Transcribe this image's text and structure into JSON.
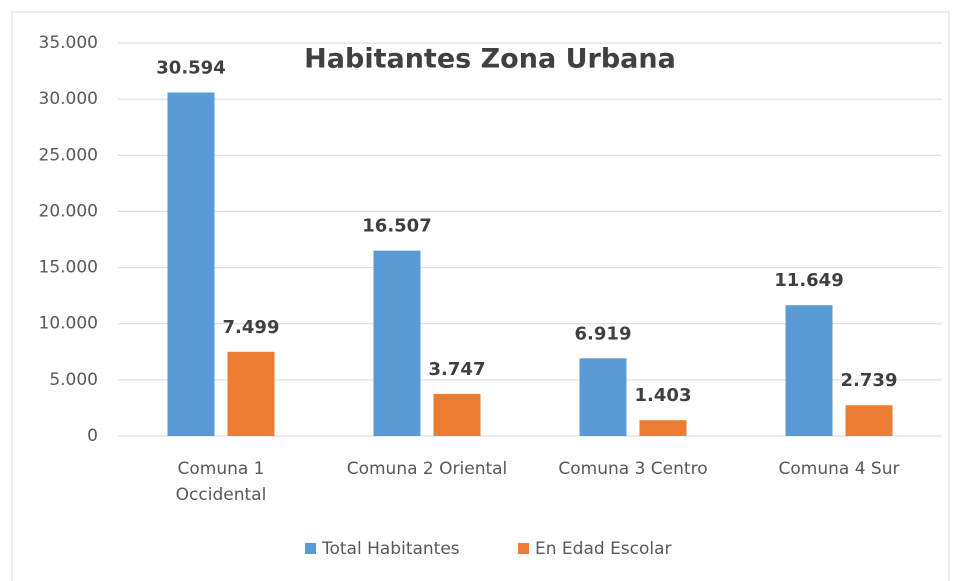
{
  "chart_data": {
    "type": "bar",
    "title": "Habitantes Zona Urbana",
    "categories": [
      "Comuna 1 Occidental",
      "Comuna 2 Oriental",
      "Comuna 3 Centro",
      "Comuna 4 Sur"
    ],
    "series": [
      {
        "name": "Total Habitantes",
        "color": "#5b9bd5",
        "values": [
          30594,
          16507,
          6919,
          11649
        ],
        "value_labels": [
          "30.594",
          "16.507",
          "6.919",
          "11.649"
        ]
      },
      {
        "name": "En Edad Escolar",
        "color": "#ed7d31",
        "values": [
          7499,
          3747,
          1403,
          2739
        ],
        "value_labels": [
          "7.499",
          "3.747",
          "1.403",
          "2.739"
        ]
      }
    ],
    "ylim": [
      0,
      35000
    ],
    "yticks": [
      0,
      {
        "value": 5000,
        "label": "5.000"
      },
      {
        "value": 10000,
        "label": "10.000"
      },
      {
        "value": 15000,
        "label": "15.000"
      },
      {
        "value": 20000,
        "label": "20.000"
      },
      {
        "value": 25000,
        "label": "25.000"
      },
      {
        "value": 30000,
        "label": "30.000"
      },
      {
        "value": 35000,
        "label": "35.000"
      }
    ],
    "grid": true,
    "legend": "bottom"
  }
}
